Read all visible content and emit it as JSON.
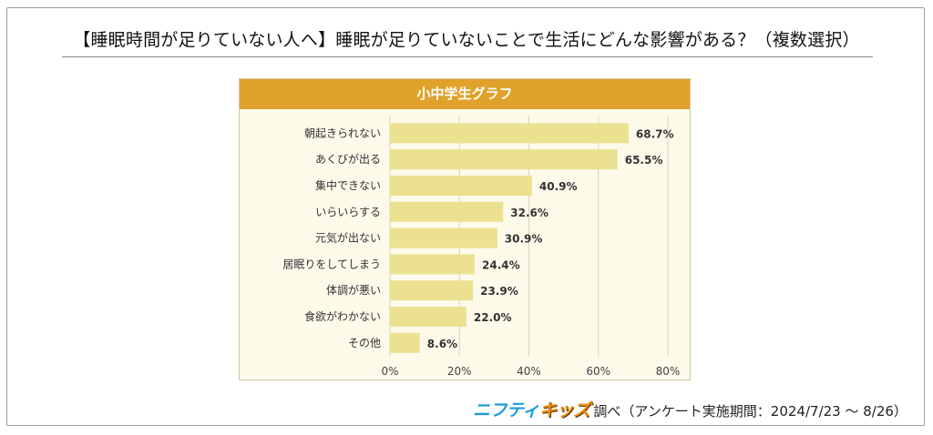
{
  "headline": "【睡眠時間が足りていない人へ】睡眠が足りていないことで生活にどんな影響がある？（複数選択）",
  "chart_data": {
    "type": "bar",
    "orientation": "horizontal",
    "title": "小中学生グラフ",
    "categories": [
      "朝起きられない",
      "あくびが出る",
      "集中できない",
      "いらいらする",
      "元気が出ない",
      "居眠りをしてしまう",
      "体調が悪い",
      "食欲がわかない",
      "その他"
    ],
    "values": [
      68.7,
      65.5,
      40.9,
      32.6,
      30.9,
      24.4,
      23.9,
      22.0,
      8.6
    ],
    "value_labels": [
      "68.7%",
      "65.5%",
      "40.9%",
      "32.6%",
      "30.9%",
      "24.4%",
      "23.9%",
      "22.0%",
      "8.6%"
    ],
    "xticks": [
      "0%",
      "20%",
      "40%",
      "60%",
      "80%"
    ],
    "xlim": [
      0,
      80
    ],
    "grid": true,
    "bar_color": "#ebe190",
    "header_color": "#e0a22b"
  },
  "footer": {
    "brand_part1": "ニフティ",
    "brand_part2": "キッズ",
    "source": "調べ（アンケート実施期間：2024/7/23 ～ 8/26）"
  }
}
